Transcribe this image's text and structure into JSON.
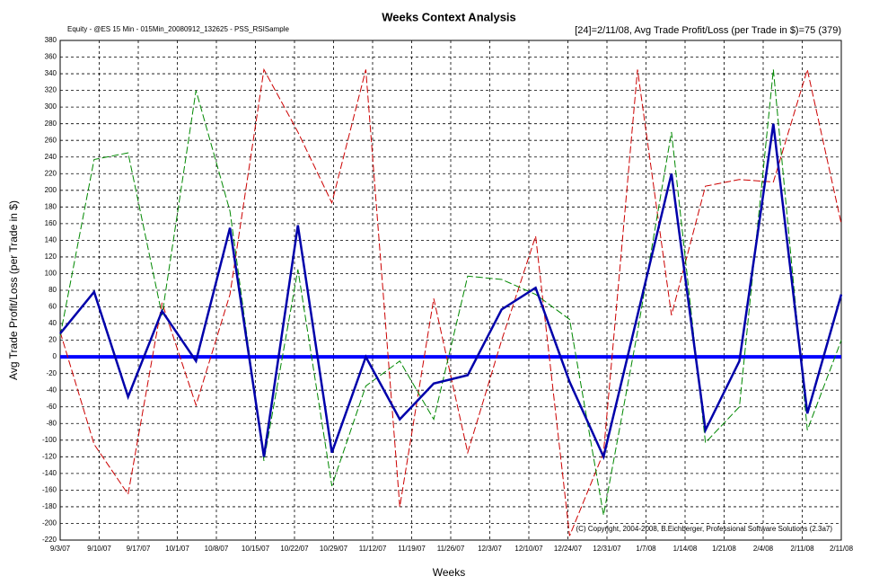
{
  "chart_data": {
    "type": "line",
    "title": "Weeks Context Analysis",
    "subtitle": "Equity - @ES 15 Min - 015Min_20080912_132625 - PSS_RSISample",
    "info": "[24]=2/11/08,  Avg Trade Profit/Loss   (per Trade in $)=75 (379)",
    "copyright": "(C) Copyright, 2004-2008, B.Eichberger, Professional Software Solutions (2.3a7)",
    "x_label": "Weeks",
    "y_label": "Avg Trade Profit/Loss   (per Trade in $)",
    "xlabels": [
      "9/3/07",
      "9/10/07",
      "9/17/07",
      "10/1/07",
      "10/8/07",
      "10/15/07",
      "10/22/07",
      "10/29/07",
      "11/12/07",
      "11/19/07",
      "11/26/07",
      "12/3/07",
      "12/10/07",
      "12/24/07",
      "12/31/07",
      "1/7/08",
      "1/14/08",
      "1/21/08",
      "2/4/08",
      "2/11/08",
      "2/11/08"
    ],
    "ylim": [
      -220,
      380
    ],
    "yticks": [
      -220,
      -200,
      -180,
      -160,
      -140,
      -120,
      -100,
      -80,
      -60,
      -40,
      -20,
      0,
      20,
      40,
      60,
      80,
      100,
      120,
      140,
      160,
      180,
      200,
      220,
      240,
      260,
      280,
      300,
      320,
      340,
      360,
      380
    ],
    "grid": true,
    "zero_line_color": "#0000ff",
    "series": [
      {
        "color": "#cc0000",
        "width": 1,
        "dash": true,
        "values": [
          30,
          -105,
          -165,
          65,
          -58,
          75,
          345,
          270,
          185,
          345,
          -180,
          70,
          -115,
          20,
          145,
          -215,
          -115,
          345,
          50,
          205,
          213,
          210,
          345,
          160
        ]
      },
      {
        "color": "#008800",
        "width": 1,
        "dash": true,
        "values": [
          25,
          237,
          245,
          50,
          320,
          175,
          -125,
          105,
          -155,
          -35,
          -5,
          -75,
          97,
          93,
          75,
          45,
          -190,
          30,
          270,
          -103,
          -60,
          345,
          -88,
          20
        ]
      },
      {
        "color": "#0000aa",
        "width": 2.5,
        "dash": false,
        "values": [
          28,
          78,
          -48,
          55,
          -5,
          155,
          -120,
          158,
          -115,
          0,
          -75,
          -32,
          -22,
          57,
          83,
          -30,
          -120,
          50,
          220,
          -88,
          -5,
          280,
          -68,
          75
        ]
      }
    ]
  }
}
